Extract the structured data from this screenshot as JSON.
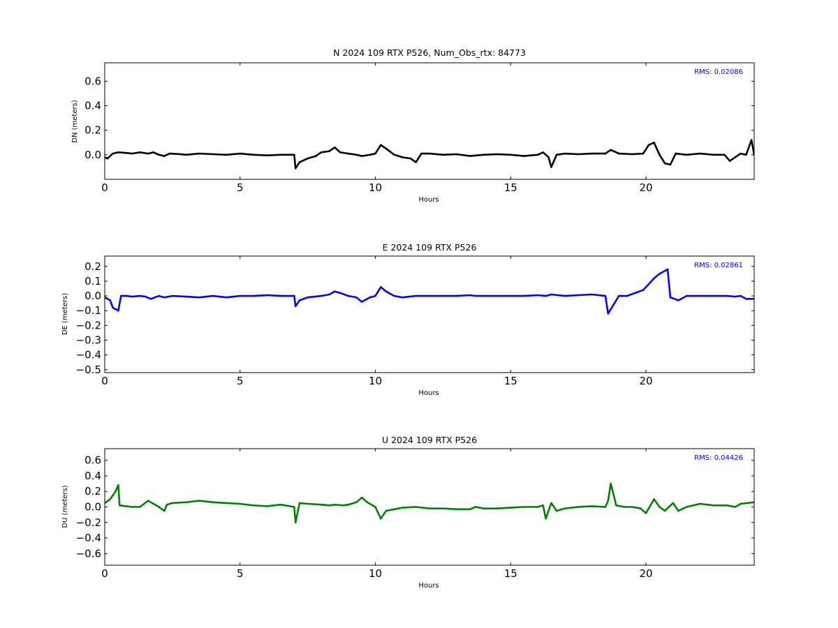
{
  "chart_data": [
    {
      "type": "scatter",
      "title": "N 2024 109 RTX  P526, Num_Obs_rtx: 84773",
      "xlabel": "Hours",
      "ylabel": "DN (meters)",
      "xlim": [
        0,
        24
      ],
      "ylim": [
        -0.2,
        0.75
      ],
      "xticks": [
        0,
        5,
        10,
        15,
        20
      ],
      "yticks": [
        0.0,
        0.2,
        0.4,
        0.6
      ],
      "ytick_labels": [
        "0.0",
        "0.2",
        "0.4",
        "0.6"
      ],
      "grid": false,
      "annotation": "RMS:  0.02086",
      "series": [
        {
          "color": "#000000",
          "x": [
            0.0,
            0.1,
            0.3,
            0.5,
            0.8,
            1.0,
            1.3,
            1.6,
            1.8,
            2.0,
            2.2,
            2.4,
            2.8,
            3.0,
            3.5,
            4.0,
            4.5,
            5.0,
            5.5,
            6.0,
            6.5,
            7.0,
            7.05,
            7.2,
            7.5,
            7.8,
            8.0,
            8.3,
            8.5,
            8.7,
            9.0,
            9.3,
            9.5,
            9.8,
            10.0,
            10.2,
            10.4,
            10.7,
            11.0,
            11.3,
            11.5,
            11.7,
            12.0,
            12.5,
            13.0,
            13.5,
            14.0,
            14.5,
            15.0,
            15.5,
            16.0,
            16.2,
            16.4,
            16.5,
            16.7,
            17.0,
            17.5,
            18.0,
            18.5,
            18.7,
            19.0,
            19.5,
            19.9,
            20.1,
            20.3,
            20.5,
            20.7,
            20.9,
            21.1,
            21.5,
            22.0,
            22.5,
            22.9,
            23.1,
            23.5,
            23.7,
            23.9,
            24.0
          ],
          "y": [
            -0.02,
            -0.03,
            0.01,
            0.02,
            0.015,
            0.01,
            0.02,
            0.01,
            0.02,
            0.0,
            -0.01,
            0.01,
            0.005,
            0.0,
            0.01,
            0.005,
            0.0,
            0.01,
            0.0,
            -0.005,
            0.0,
            0.0,
            -0.11,
            -0.06,
            -0.03,
            -0.01,
            0.02,
            0.03,
            0.06,
            0.02,
            0.01,
            0.0,
            -0.01,
            0.0,
            0.01,
            0.08,
            0.05,
            0.0,
            -0.02,
            -0.03,
            -0.06,
            0.01,
            0.01,
            0.0,
            0.005,
            -0.01,
            0.0,
            0.005,
            0.0,
            -0.01,
            0.0,
            0.02,
            -0.02,
            -0.1,
            0.0,
            0.01,
            0.005,
            0.01,
            0.01,
            0.04,
            0.01,
            0.005,
            0.01,
            0.08,
            0.1,
            0.0,
            -0.07,
            -0.08,
            0.01,
            0.0,
            0.01,
            0.0,
            0.0,
            -0.05,
            0.01,
            0.0,
            0.12,
            0.0
          ]
        }
      ]
    },
    {
      "type": "scatter",
      "title": "E 2024 109 RTX  P526",
      "xlabel": "Hours",
      "ylabel": "DE (meters)",
      "xlim": [
        0,
        24
      ],
      "ylim": [
        -0.52,
        0.27
      ],
      "xticks": [
        0,
        5,
        10,
        15,
        20
      ],
      "yticks": [
        -0.5,
        -0.4,
        -0.3,
        -0.2,
        -0.1,
        0.0,
        0.1,
        0.2
      ],
      "ytick_labels": [
        "−0.5",
        "−0.4",
        "−0.3",
        "−0.2",
        "−0.1",
        "0.0",
        "0.1",
        "0.2"
      ],
      "grid": false,
      "annotation": "RMS:  0.02861",
      "series": [
        {
          "color": "#0000ff",
          "x": [
            0.0,
            0.1,
            0.2,
            0.3,
            0.5,
            0.6,
            0.8,
            1.0,
            1.3,
            1.5,
            1.7,
            2.0,
            2.2,
            2.5,
            3.0,
            3.5,
            4.0,
            4.5,
            5.0,
            5.5,
            6.0,
            6.5,
            7.0,
            7.05,
            7.2,
            7.5,
            8.0,
            8.3,
            8.5,
            8.7,
            9.0,
            9.3,
            9.5,
            9.8,
            10.0,
            10.2,
            10.4,
            10.7,
            11.0,
            11.5,
            12.0,
            12.5,
            13.0,
            13.5,
            13.7,
            14.0,
            14.5,
            15.0,
            15.5,
            16.0,
            16.3,
            16.5,
            17.0,
            17.5,
            18.0,
            18.5,
            18.6,
            18.8,
            19.0,
            19.3,
            19.6,
            19.9,
            20.1,
            20.3,
            20.5,
            20.7,
            20.8,
            20.9,
            21.2,
            21.5,
            22.0,
            22.5,
            23.0,
            23.3,
            23.5,
            23.7,
            24.0
          ],
          "y": [
            -0.01,
            -0.02,
            -0.03,
            -0.08,
            -0.1,
            0.0,
            0.0,
            -0.005,
            0.0,
            -0.005,
            -0.02,
            0.0,
            -0.01,
            0.0,
            -0.005,
            -0.01,
            0.0,
            -0.01,
            0.0,
            0.0,
            0.005,
            0.0,
            0.0,
            -0.07,
            -0.03,
            -0.01,
            0.0,
            0.01,
            0.03,
            0.02,
            0.0,
            -0.01,
            -0.04,
            -0.01,
            0.0,
            0.06,
            0.03,
            0.0,
            -0.01,
            0.0,
            0.0,
            0.0,
            0.0,
            0.005,
            0.0,
            0.0,
            0.0,
            0.0,
            0.0,
            0.005,
            0.0,
            0.01,
            0.0,
            0.005,
            0.01,
            0.0,
            -0.12,
            -0.06,
            0.0,
            0.0,
            0.02,
            0.04,
            0.08,
            0.12,
            0.15,
            0.17,
            0.18,
            -0.01,
            -0.03,
            0.0,
            0.0,
            0.0,
            0.0,
            -0.005,
            0.0,
            -0.02,
            -0.02
          ]
        }
      ]
    },
    {
      "type": "scatter",
      "title": "U 2024 109 RTX  P526",
      "xlabel": "Hours",
      "ylabel": "DU (meters)",
      "xlim": [
        0,
        24
      ],
      "ylim": [
        -0.75,
        0.75
      ],
      "xticks": [
        0,
        5,
        10,
        15,
        20
      ],
      "yticks": [
        -0.6,
        -0.4,
        -0.2,
        0.0,
        0.2,
        0.4,
        0.6
      ],
      "ytick_labels": [
        "−0.6",
        "−0.4",
        "−0.2",
        "0.0",
        "0.2",
        "0.4",
        "0.6"
      ],
      "grid": false,
      "annotation": "RMS:  0.04426",
      "series": [
        {
          "color": "#008000",
          "x": [
            0.0,
            0.2,
            0.4,
            0.5,
            0.55,
            0.8,
            1.0,
            1.3,
            1.6,
            1.8,
            2.0,
            2.2,
            2.3,
            2.5,
            3.0,
            3.5,
            4.0,
            4.5,
            5.0,
            5.5,
            6.0,
            6.5,
            7.0,
            7.05,
            7.2,
            7.5,
            8.0,
            8.3,
            8.5,
            8.8,
            9.0,
            9.3,
            9.5,
            9.7,
            10.0,
            10.2,
            10.4,
            10.7,
            11.0,
            11.5,
            12.0,
            12.5,
            13.0,
            13.5,
            13.7,
            14.0,
            14.5,
            15.0,
            15.5,
            16.0,
            16.2,
            16.3,
            16.5,
            16.7,
            17.0,
            17.5,
            18.0,
            18.5,
            18.6,
            18.7,
            18.9,
            19.2,
            19.5,
            19.8,
            20.0,
            20.3,
            20.5,
            20.7,
            21.0,
            21.2,
            21.5,
            22.0,
            22.5,
            23.0,
            23.3,
            23.5,
            24.0
          ],
          "y": [
            0.05,
            0.1,
            0.2,
            0.28,
            0.02,
            0.01,
            0.0,
            0.0,
            0.08,
            0.04,
            0.0,
            -0.05,
            0.03,
            0.05,
            0.06,
            0.08,
            0.06,
            0.05,
            0.04,
            0.02,
            0.01,
            0.03,
            0.0,
            -0.2,
            0.05,
            0.04,
            0.03,
            0.02,
            0.03,
            0.02,
            0.03,
            0.06,
            0.12,
            0.06,
            0.0,
            -0.15,
            -0.05,
            -0.03,
            -0.01,
            0.0,
            -0.02,
            -0.02,
            -0.03,
            -0.03,
            0.0,
            -0.02,
            -0.02,
            -0.01,
            0.0,
            0.0,
            0.02,
            -0.15,
            0.05,
            -0.05,
            -0.02,
            0.0,
            0.01,
            0.0,
            0.08,
            0.3,
            0.02,
            0.0,
            0.0,
            -0.02,
            -0.08,
            0.1,
            0.0,
            -0.05,
            0.05,
            -0.05,
            0.0,
            0.04,
            0.02,
            0.02,
            0.0,
            0.04,
            0.06
          ]
        }
      ]
    }
  ]
}
